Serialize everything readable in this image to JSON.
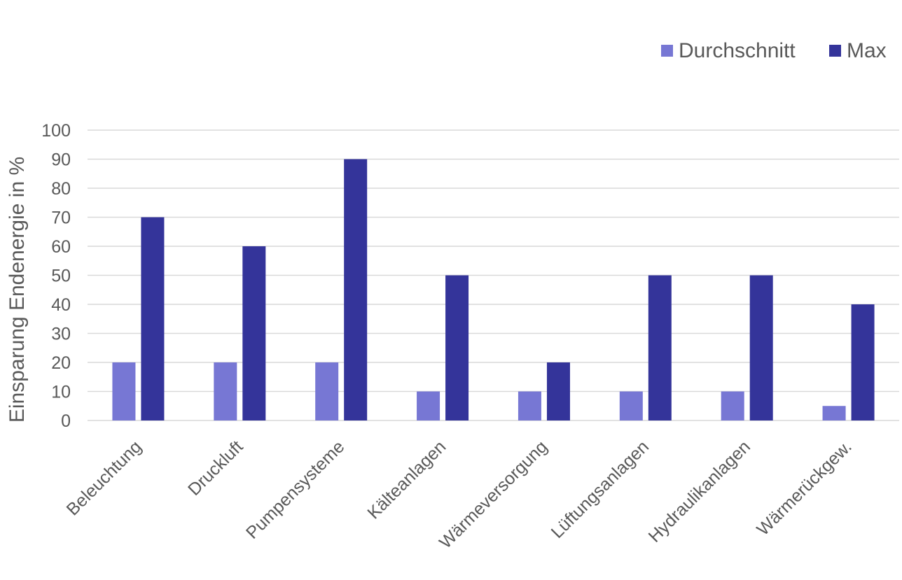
{
  "chart_data": {
    "type": "bar",
    "title": "",
    "xlabel": "",
    "ylabel": "Einsparung Endenergie in %",
    "ylim": [
      0,
      100
    ],
    "yticks": [
      0,
      10,
      20,
      30,
      40,
      50,
      60,
      70,
      80,
      90,
      100
    ],
    "grid": true,
    "legend_position": "top-right",
    "categories": [
      "Beleuchtung",
      "Druckluft",
      "Pumpensysteme",
      "Kälteanlagen",
      "Wärmeversorgung",
      "Lüftungsanlagen",
      "Hydraulikanlagen",
      "Wärmerückgew."
    ],
    "series": [
      {
        "name": "Durchschnitt",
        "color": "#7777d4",
        "values": [
          20,
          20,
          20,
          10,
          10,
          10,
          10,
          5
        ]
      },
      {
        "name": "Max",
        "color": "#34349a",
        "values": [
          70,
          60,
          90,
          50,
          20,
          50,
          50,
          40
        ]
      }
    ]
  }
}
